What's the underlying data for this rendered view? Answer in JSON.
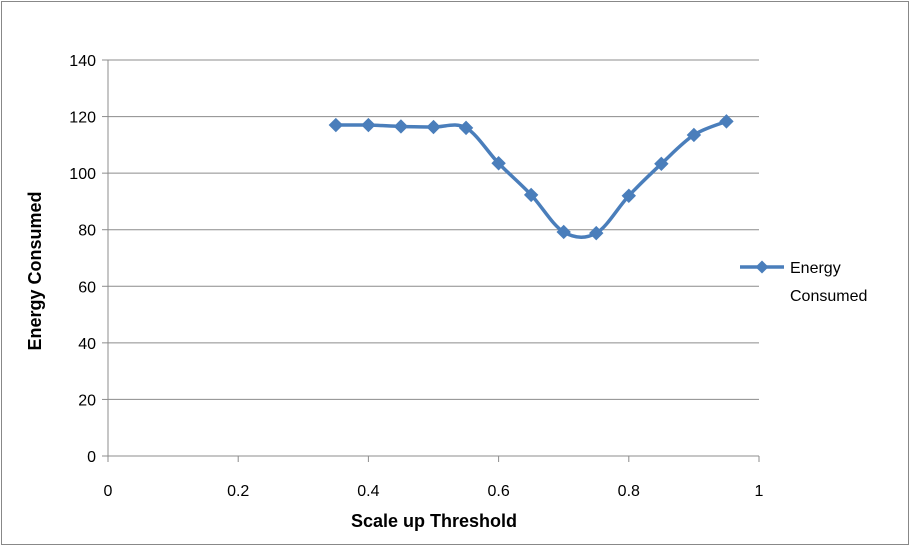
{
  "chart_data": {
    "type": "line",
    "title": "",
    "xlabel": "Scale up Threshold",
    "ylabel": "Energy Consumed",
    "xlim": [
      0,
      1
    ],
    "ylim": [
      0,
      140
    ],
    "x_ticks": [
      "0",
      "0.2",
      "0.4",
      "0.6",
      "0.8",
      "1"
    ],
    "x_tick_values": [
      0,
      0.2,
      0.4,
      0.6,
      0.8,
      1
    ],
    "y_ticks": [
      "0",
      "20",
      "40",
      "60",
      "80",
      "100",
      "120",
      "140"
    ],
    "y_tick_values": [
      0,
      20,
      40,
      60,
      80,
      100,
      120,
      140
    ],
    "grid": "horizontal major gridlines",
    "legend_position": "right",
    "smoothed": true,
    "marker": "diamond",
    "series": [
      {
        "name": "Energy Consumed",
        "color": "#4a7ebb",
        "x": [
          0.35,
          0.4,
          0.45,
          0.5,
          0.55,
          0.6,
          0.65,
          0.7,
          0.75,
          0.8,
          0.85,
          0.9,
          0.95
        ],
        "y": [
          117,
          117,
          116.5,
          116.3,
          116,
          103.5,
          92.3,
          79.2,
          78.8,
          92,
          103.3,
          113.5,
          118.3
        ]
      }
    ]
  }
}
